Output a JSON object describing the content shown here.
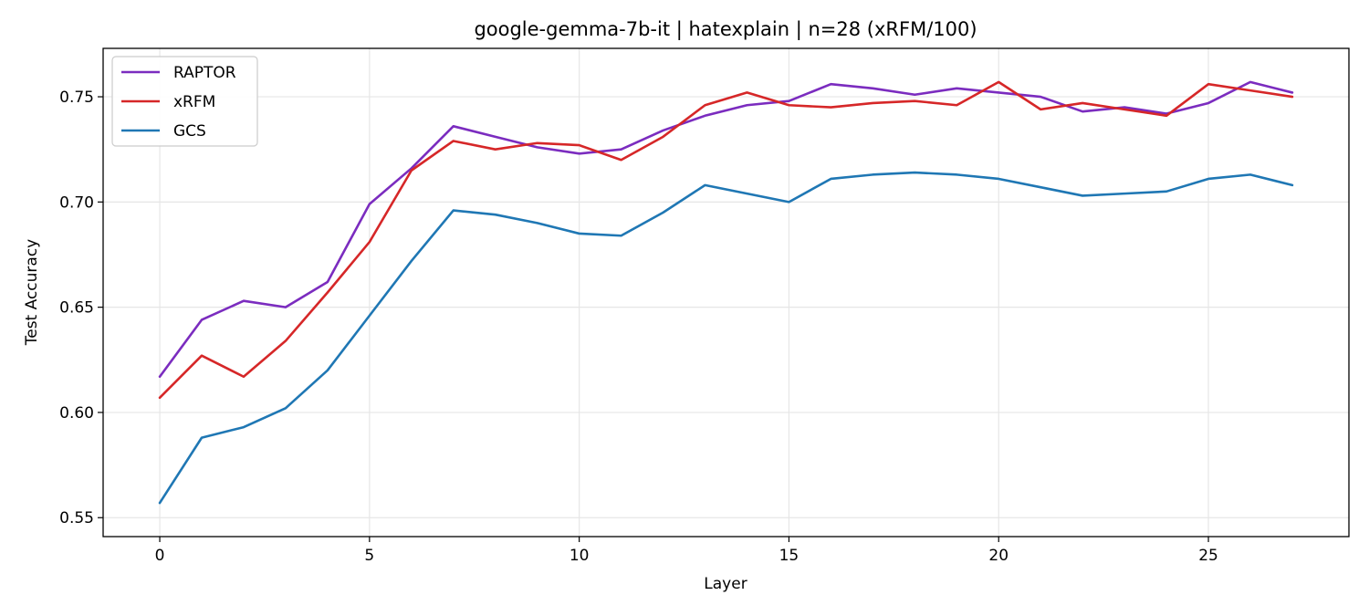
{
  "chart_data": {
    "type": "line",
    "title": "google-gemma-7b-it | hatexplain | n=28 (xRFM/100)",
    "xlabel": "Layer",
    "ylabel": "Test Accuracy",
    "xlim": [
      -1.35,
      28.35
    ],
    "ylim": [
      0.541,
      0.773
    ],
    "xticks": [
      0,
      5,
      10,
      15,
      20,
      25
    ],
    "yticks": [
      0.55,
      0.6,
      0.65,
      0.7,
      0.75
    ],
    "xtick_labels": [
      "0",
      "5",
      "10",
      "15",
      "20",
      "25"
    ],
    "ytick_labels": [
      "0.55",
      "0.60",
      "0.65",
      "0.70",
      "0.75"
    ],
    "grid": true,
    "legend_position": "top-left",
    "x": [
      0,
      1,
      2,
      3,
      4,
      5,
      6,
      7,
      8,
      9,
      10,
      11,
      12,
      13,
      14,
      15,
      16,
      17,
      18,
      19,
      20,
      21,
      22,
      23,
      24,
      25,
      26,
      27
    ],
    "series": [
      {
        "name": "RAPTOR",
        "color": "#7b2cbf",
        "values": [
          0.617,
          0.644,
          0.653,
          0.65,
          0.662,
          0.699,
          0.716,
          0.736,
          0.731,
          0.726,
          0.723,
          0.725,
          0.734,
          0.741,
          0.746,
          0.748,
          0.756,
          0.754,
          0.751,
          0.754,
          0.752,
          0.75,
          0.743,
          0.745,
          0.742,
          0.747,
          0.757,
          0.752
        ]
      },
      {
        "name": "xRFM",
        "color": "#d62728",
        "values": [
          0.607,
          0.627,
          0.617,
          0.634,
          0.657,
          0.681,
          0.715,
          0.729,
          0.725,
          0.728,
          0.727,
          0.72,
          0.731,
          0.746,
          0.752,
          0.746,
          0.745,
          0.747,
          0.748,
          0.746,
          0.757,
          0.744,
          0.747,
          0.744,
          0.741,
          0.756,
          0.753,
          0.75
        ]
      },
      {
        "name": "GCS",
        "color": "#1f77b4",
        "values": [
          0.557,
          0.588,
          0.593,
          0.602,
          0.62,
          0.646,
          0.672,
          0.696,
          0.694,
          0.69,
          0.685,
          0.684,
          0.695,
          0.708,
          0.704,
          0.7,
          0.711,
          0.713,
          0.714,
          0.713,
          0.711,
          0.707,
          0.703,
          0.704,
          0.705,
          0.711,
          0.713,
          0.708
        ]
      }
    ]
  }
}
